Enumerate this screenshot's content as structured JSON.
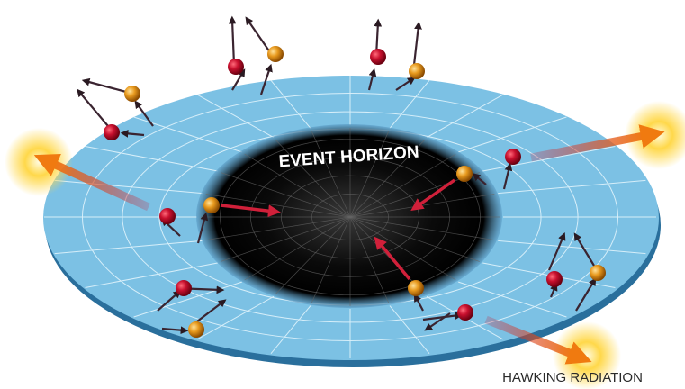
{
  "labels": {
    "event_horizon": "EVENT HORIZON",
    "hawking_radiation": "HAWKING RADIATION"
  }
}
